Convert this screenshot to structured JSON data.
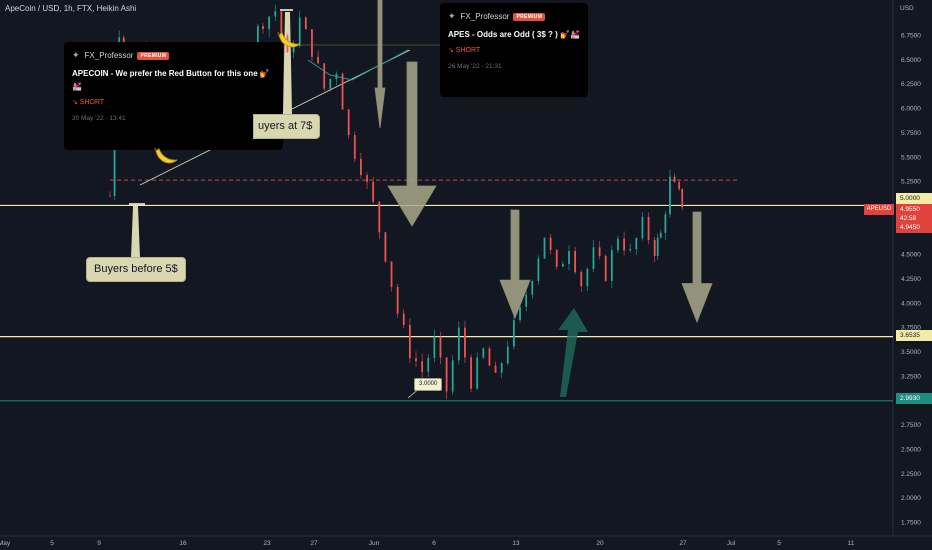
{
  "symbol_line": "ApeCoin / USD, 1h, FTX, Heikin Ashi",
  "currency": "USD",
  "colors": {
    "background": "#131722",
    "up_candle": "#26a69a",
    "down_candle": "#ef5350",
    "yellow_line": "#f3eba8",
    "teal_line": "#1c8f7f",
    "dashed_red": "#c44a46",
    "arrow_fill": "#a9a98a",
    "teal_arrow": "#1f6b5d"
  },
  "ideas": [
    {
      "author": "FX_Professor",
      "badge": "PREMIUM",
      "title": "APECOIN - We prefer the Red Button for this one 💅💒",
      "signal": "↘ SHORT",
      "date": "30 May '22 - 13:41"
    },
    {
      "author": "FX_Professor",
      "badge": "PREMIUM",
      "title": "APES - Odds are Odd ( 3$ ? ) 💅💒",
      "signal": "↘ SHORT",
      "date": "26 May '22 - 21:31"
    }
  ],
  "annotations": {
    "buyers_before": "Buyers before 5$",
    "buyers_at": "uyers at 7$",
    "level_label": "3.0000"
  },
  "price_tags": {
    "p5000": "5.0000",
    "p4955": "4.9550",
    "countdown": "42:58",
    "p4945": "4.9450",
    "p36535": "3.6535",
    "p29930": "2.9930",
    "ticker": "APEUSD"
  },
  "chart_data": {
    "type": "candlestick",
    "title": "ApeCoin / USD, 1h, FTX, Heikin Ashi",
    "x_ticks": [
      "May",
      "5",
      "9",
      "16",
      "23",
      "27",
      "Jun",
      "6",
      "13",
      "20",
      "27",
      "Jul",
      "5",
      "11"
    ],
    "y_ticks": [
      "6.7500",
      "6.5000",
      "6.2500",
      "6.0000",
      "5.7500",
      "5.5000",
      "5.2500",
      "5.0000",
      "4.7500",
      "4.5000",
      "4.2500",
      "4.0000",
      "3.7500",
      "3.5000",
      "3.2500",
      "3.0000",
      "2.7500",
      "2.5000",
      "2.2500",
      "2.0000",
      "1.7500"
    ],
    "ylim": [
      1.6,
      7.1
    ],
    "horizontal_levels": [
      5.0,
      3.6535,
      2.993
    ],
    "dashed_level": 5.26,
    "last_price": 4.955,
    "price_path": [
      [
        0.0,
        5.1
      ],
      [
        0.3,
        6.8
      ],
      [
        0.6,
        6.2
      ],
      [
        1.0,
        6.6
      ],
      [
        1.4,
        6.4
      ],
      [
        2.0,
        6.5
      ],
      [
        2.6,
        6.3
      ],
      [
        3.0,
        5.9
      ],
      [
        3.5,
        6.2
      ],
      [
        4.0,
        6.4
      ],
      [
        4.5,
        6.6
      ],
      [
        5.0,
        6.9
      ],
      [
        5.4,
        7.0
      ],
      [
        5.8,
        6.5
      ],
      [
        6.2,
        6.9
      ],
      [
        6.6,
        6.6
      ],
      [
        7.0,
        6.2
      ],
      [
        7.4,
        6.4
      ],
      [
        7.8,
        5.7
      ],
      [
        8.2,
        5.4
      ],
      [
        8.6,
        5.0
      ],
      [
        9.0,
        4.5
      ],
      [
        9.4,
        3.9
      ],
      [
        9.8,
        3.5
      ],
      [
        10.2,
        3.3
      ],
      [
        10.6,
        3.6
      ],
      [
        11.0,
        3.1
      ],
      [
        11.4,
        3.7
      ],
      [
        11.8,
        3.2
      ],
      [
        12.2,
        3.5
      ],
      [
        12.6,
        3.2
      ],
      [
        13.0,
        3.6
      ],
      [
        13.4,
        3.9
      ],
      [
        13.8,
        4.3
      ],
      [
        14.2,
        4.7
      ],
      [
        14.6,
        4.3
      ],
      [
        15.0,
        4.6
      ],
      [
        15.4,
        4.2
      ],
      [
        15.8,
        4.5
      ],
      [
        16.2,
        4.3
      ],
      [
        16.6,
        4.7
      ],
      [
        17.0,
        4.5
      ],
      [
        17.4,
        4.8
      ],
      [
        17.8,
        4.55
      ],
      [
        18.0,
        4.7
      ],
      [
        18.3,
        5.25
      ],
      [
        18.6,
        5.1
      ],
      [
        18.8,
        4.955
      ]
    ]
  }
}
